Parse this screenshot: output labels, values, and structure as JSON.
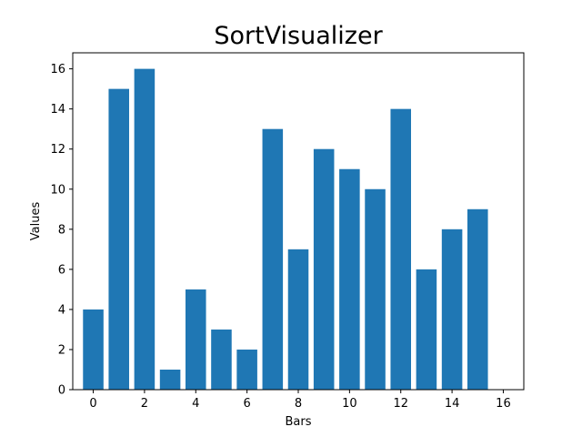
{
  "chart_data": {
    "type": "bar",
    "title": "SortVisualizer",
    "xlabel": "Bars",
    "ylabel": "Values",
    "categories": [
      0,
      1,
      2,
      3,
      4,
      5,
      6,
      7,
      8,
      9,
      10,
      11,
      12,
      13,
      14,
      15
    ],
    "values": [
      4,
      15,
      16,
      1,
      5,
      3,
      2,
      13,
      7,
      12,
      11,
      10,
      14,
      6,
      8,
      9
    ],
    "xlim": [
      -0.8,
      16.8
    ],
    "ylim": [
      0,
      16.8
    ],
    "xticks": [
      0,
      2,
      4,
      6,
      8,
      10,
      12,
      14,
      16
    ],
    "yticks": [
      0,
      2,
      4,
      6,
      8,
      10,
      12,
      14,
      16
    ],
    "bar_color": "#1f77b4",
    "grid": false,
    "legend": "none"
  }
}
